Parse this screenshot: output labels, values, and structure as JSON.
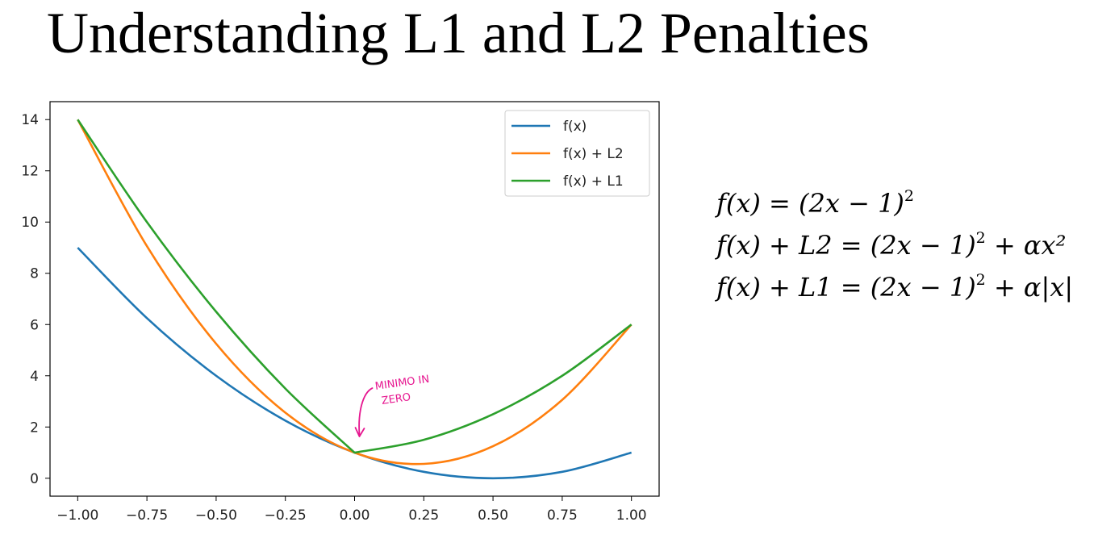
{
  "slide": {
    "title": "Understanding L1 and L2 Penalties",
    "equations": [
      {
        "lhs": "f(x) = (2x − 1)",
        "sup": "2",
        "rhs": ""
      },
      {
        "lhs": "f(x) + L2 = (2x − 1)",
        "sup": "2",
        "rhs": " + αx²"
      },
      {
        "lhs": "f(x) + L1 = (2x − 1)",
        "sup": "2",
        "rhs": " + α|x|"
      }
    ]
  },
  "chart_data": {
    "type": "line",
    "title": "",
    "xlabel": "",
    "ylabel": "",
    "xlim": [
      -1.1,
      1.1
    ],
    "ylim": [
      -0.7,
      14.7
    ],
    "x_ticks": [
      -1.0,
      -0.75,
      -0.5,
      -0.25,
      0.0,
      0.25,
      0.5,
      0.75,
      1.0
    ],
    "x_tick_labels": [
      "−1.00",
      "−0.75",
      "−0.50",
      "−0.25",
      "0.00",
      "0.25",
      "0.50",
      "0.75",
      "1.00"
    ],
    "y_ticks": [
      0,
      2,
      4,
      6,
      8,
      10,
      12,
      14
    ],
    "y_tick_labels": [
      "0",
      "2",
      "4",
      "6",
      "8",
      "10",
      "12",
      "14"
    ],
    "grid": false,
    "legend_position": "top-right",
    "x": [
      -1.0,
      -0.75,
      -0.5,
      -0.25,
      0.0,
      0.25,
      0.5,
      0.75,
      1.0
    ],
    "series": [
      {
        "name": "f(x)",
        "color": "#1f77b4",
        "values": [
          9.0,
          6.25,
          4.0,
          2.25,
          1.0,
          0.25,
          0.0,
          0.25,
          1.0
        ]
      },
      {
        "name": "f(x) + L2",
        "color": "#ff7f0e",
        "values": [
          14.0,
          9.06,
          5.25,
          2.56,
          1.0,
          0.56,
          1.25,
          3.06,
          6.0
        ]
      },
      {
        "name": "f(x) + L1",
        "color": "#2ca02c",
        "values": [
          14.0,
          10.0,
          6.5,
          3.5,
          1.0,
          1.5,
          2.5,
          4.0,
          6.0
        ]
      }
    ],
    "annotation": {
      "text_line1": "MINIMO IN",
      "text_line2": "ZERO",
      "color": "#e6158f",
      "x": 0.0,
      "y": 1.0
    }
  }
}
